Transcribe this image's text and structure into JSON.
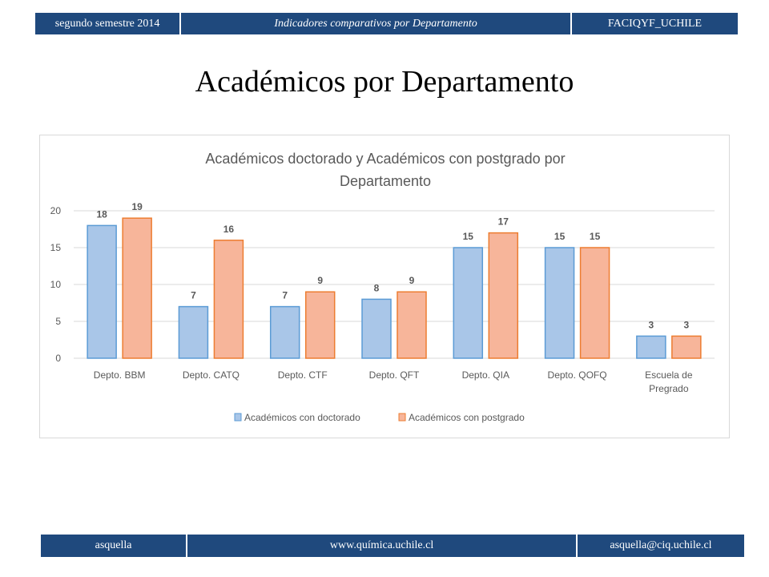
{
  "header": {
    "left": "segundo semestre 2014",
    "center": "Indicadores comparativos por Departamento",
    "right": "FACIQYF_UCHILE"
  },
  "slide_title": "Académicos por Departamento",
  "footer": {
    "left": "asquella",
    "center": "www.química.uchile.cl",
    "right": "asquella@ciq.uchile.cl"
  },
  "colors": {
    "band": "#1f497d",
    "series_blue_fill": "#a9c6e8",
    "series_blue_stroke": "#5b9bd5",
    "series_orange_fill": "#f7b59a",
    "series_orange_stroke": "#ed7d31"
  },
  "chart_data": {
    "type": "bar",
    "title": "Académicos doctorado y Académicos con postgrado por Departamento",
    "title_lines": [
      "Académicos doctorado y Académicos con postgrado por",
      "Departamento"
    ],
    "categories": [
      [
        "Depto. BBM"
      ],
      [
        "Depto. CATQ"
      ],
      [
        "Depto. CTF"
      ],
      [
        "Depto. QFT"
      ],
      [
        "Depto. QIA"
      ],
      [
        "Depto. QOFQ"
      ],
      [
        "Escuela de",
        "Pregrado"
      ]
    ],
    "series": [
      {
        "name": "Académicos con doctorado",
        "values": [
          18,
          7,
          7,
          8,
          15,
          15,
          3
        ]
      },
      {
        "name": "Académicos con postgrado",
        "values": [
          19,
          16,
          9,
          9,
          17,
          15,
          3
        ]
      }
    ],
    "ylim": [
      0,
      20
    ],
    "yticks": [
      0,
      5,
      10,
      15,
      20
    ],
    "grid": true,
    "legend_position": "bottom"
  }
}
